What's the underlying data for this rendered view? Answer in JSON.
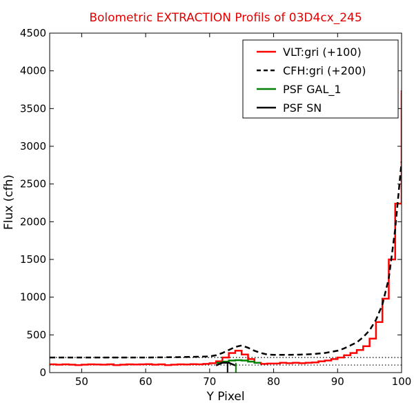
{
  "chart_data": {
    "type": "line",
    "title": "Bolometric EXTRACTION Profils of 03D4cx_245",
    "xlabel": "Y Pixel",
    "ylabel": "Flux (cfh)",
    "xlim": [
      45,
      100
    ],
    "ylim": [
      0,
      4500
    ],
    "xticks": [
      50,
      60,
      70,
      80,
      90,
      100
    ],
    "yticks": [
      0,
      500,
      1000,
      1500,
      2000,
      2500,
      3000,
      3500,
      4000,
      4500
    ],
    "legend_position": "upper right",
    "series": [
      {
        "name": "VLT:gri (+100)",
        "color": "#ff0000",
        "style": "steps-solid",
        "x": [
          45,
          46,
          47,
          48,
          49,
          50,
          51,
          52,
          53,
          54,
          55,
          56,
          57,
          58,
          59,
          60,
          61,
          62,
          63,
          64,
          65,
          66,
          67,
          68,
          69,
          70,
          71,
          72,
          73,
          74,
          75,
          76,
          77,
          78,
          79,
          80,
          81,
          82,
          83,
          84,
          85,
          86,
          87,
          88,
          89,
          90,
          91,
          92,
          93,
          94,
          95,
          96,
          97,
          98,
          99,
          100
        ],
        "y": [
          110,
          105,
          110,
          105,
          100,
          105,
          110,
          108,
          105,
          110,
          100,
          105,
          110,
          108,
          110,
          112,
          105,
          110,
          100,
          105,
          110,
          108,
          112,
          110,
          115,
          125,
          150,
          200,
          260,
          290,
          240,
          180,
          130,
          115,
          120,
          120,
          130,
          125,
          130,
          125,
          130,
          135,
          150,
          160,
          180,
          200,
          230,
          260,
          300,
          350,
          450,
          670,
          980,
          1500,
          2240,
          3730
        ]
      },
      {
        "name": "CFH:gri (+200)",
        "color": "#000000",
        "style": "dashed",
        "x": [
          45,
          50,
          55,
          60,
          65,
          68,
          70,
          71,
          72,
          73,
          74,
          75,
          76,
          77,
          78,
          79,
          80,
          82,
          84,
          86,
          88,
          90,
          91,
          92,
          93,
          94,
          95,
          96,
          97,
          98,
          99,
          100
        ],
        "y": [
          200,
          200,
          200,
          200,
          205,
          210,
          215,
          230,
          260,
          300,
          340,
          360,
          330,
          290,
          260,
          240,
          235,
          235,
          238,
          245,
          260,
          290,
          320,
          360,
          400,
          470,
          560,
          700,
          900,
          1250,
          1900,
          2800
        ]
      },
      {
        "name": "PSF GAL_1",
        "color": "#008000",
        "style": "steps-solid",
        "x": [
          71,
          72,
          73,
          74,
          75,
          76,
          77
        ],
        "y": [
          130,
          145,
          160,
          165,
          160,
          145,
          130
        ]
      },
      {
        "name": "PSF SN",
        "color": "#000000",
        "style": "solid",
        "x": [
          71,
          72,
          73,
          74
        ],
        "y": [
          95,
          130,
          130,
          95
        ]
      }
    ],
    "reference_lines": [
      {
        "y": 100,
        "style": "dotted",
        "color": "#000000"
      },
      {
        "y": 200,
        "style": "dotted",
        "color": "#000000"
      }
    ],
    "vertical_markers": [
      {
        "x": 72.8,
        "color": "#000000"
      },
      {
        "x": 74.1,
        "color": "#008000"
      }
    ]
  }
}
